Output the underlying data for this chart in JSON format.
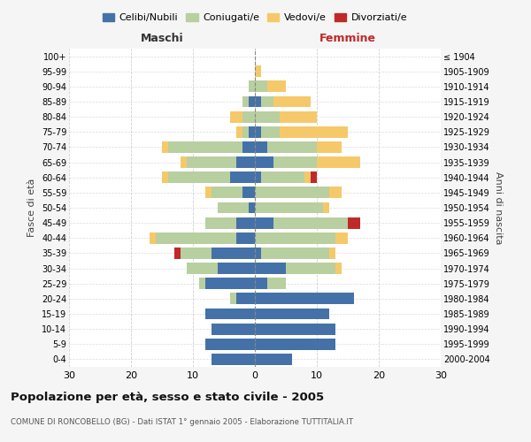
{
  "age_groups": [
    "0-4",
    "5-9",
    "10-14",
    "15-19",
    "20-24",
    "25-29",
    "30-34",
    "35-39",
    "40-44",
    "45-49",
    "50-54",
    "55-59",
    "60-64",
    "65-69",
    "70-74",
    "75-79",
    "80-84",
    "85-89",
    "90-94",
    "95-99",
    "100+"
  ],
  "birth_years": [
    "2000-2004",
    "1995-1999",
    "1990-1994",
    "1985-1989",
    "1980-1984",
    "1975-1979",
    "1970-1974",
    "1965-1969",
    "1960-1964",
    "1955-1959",
    "1950-1954",
    "1945-1949",
    "1940-1944",
    "1935-1939",
    "1930-1934",
    "1925-1929",
    "1920-1924",
    "1915-1919",
    "1910-1914",
    "1905-1909",
    "≤ 1904"
  ],
  "maschi": {
    "celibi": [
      7,
      8,
      7,
      8,
      3,
      8,
      6,
      7,
      3,
      3,
      1,
      2,
      4,
      3,
      2,
      1,
      0,
      1,
      0,
      0,
      0
    ],
    "coniugati": [
      0,
      0,
      0,
      0,
      1,
      1,
      5,
      5,
      13,
      5,
      5,
      5,
      10,
      8,
      12,
      1,
      2,
      1,
      1,
      0,
      0
    ],
    "vedovi": [
      0,
      0,
      0,
      0,
      0,
      0,
      0,
      0,
      1,
      0,
      0,
      1,
      1,
      1,
      1,
      1,
      2,
      0,
      0,
      0,
      0
    ],
    "divorziati": [
      0,
      0,
      0,
      0,
      0,
      0,
      0,
      1,
      0,
      0,
      0,
      0,
      0,
      0,
      0,
      0,
      0,
      0,
      0,
      0,
      0
    ]
  },
  "femmine": {
    "nubili": [
      6,
      13,
      13,
      12,
      16,
      2,
      5,
      1,
      0,
      3,
      0,
      0,
      1,
      3,
      2,
      1,
      0,
      1,
      0,
      0,
      0
    ],
    "coniugate": [
      0,
      0,
      0,
      0,
      0,
      3,
      8,
      11,
      13,
      12,
      11,
      12,
      7,
      7,
      8,
      3,
      4,
      2,
      2,
      0,
      0
    ],
    "vedove": [
      0,
      0,
      0,
      0,
      0,
      0,
      1,
      1,
      2,
      0,
      1,
      2,
      1,
      7,
      4,
      11,
      6,
      6,
      3,
      1,
      0
    ],
    "divorziate": [
      0,
      0,
      0,
      0,
      0,
      0,
      0,
      0,
      0,
      2,
      0,
      0,
      1,
      0,
      0,
      0,
      0,
      0,
      0,
      0,
      0
    ]
  },
  "colors": {
    "celibi_nubili": "#4472a8",
    "coniugati": "#b8cfa0",
    "vedovi": "#f5c96a",
    "divorziati": "#c0292a"
  },
  "title": "Popolazione per età, sesso e stato civile - 2005",
  "subtitle": "COMUNE DI RONCOBELLO (BG) - Dati ISTAT 1° gennaio 2005 - Elaborazione TUTTITALIA.IT",
  "xlabel_left": "Maschi",
  "xlabel_right": "Femmine",
  "ylabel_left": "Fasce di età",
  "ylabel_right": "Anni di nascita",
  "xlim": 30,
  "bg_color": "#f5f5f5",
  "plot_bg": "#ffffff",
  "legend_labels": [
    "Celibi/Nubili",
    "Coniugati/e",
    "Vedovi/e",
    "Divorziati/e"
  ]
}
